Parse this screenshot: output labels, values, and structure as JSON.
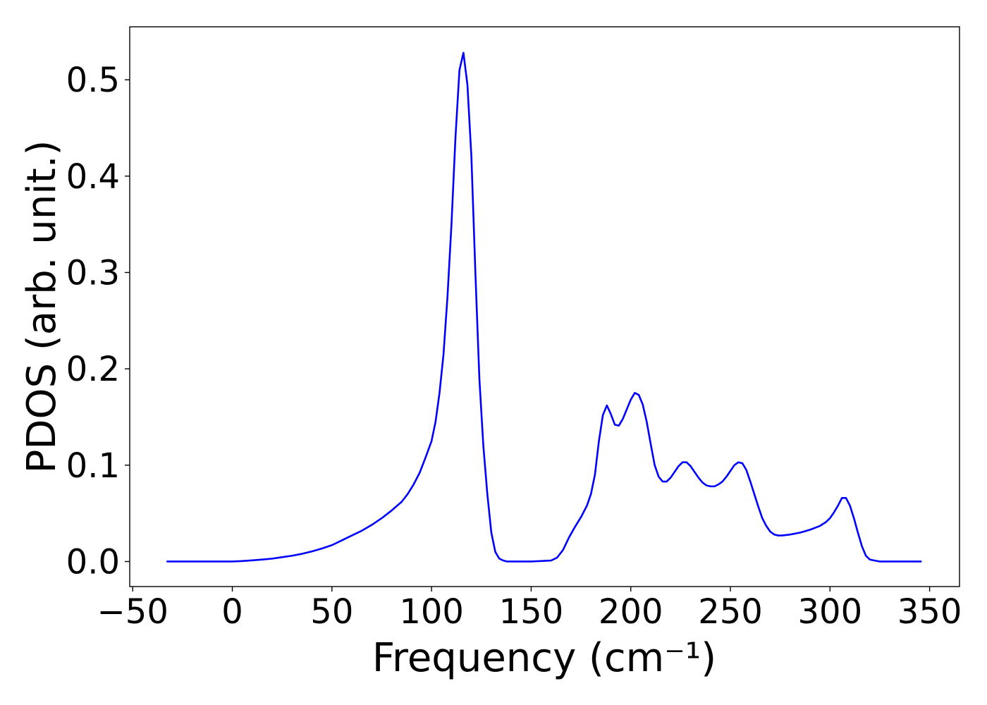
{
  "chart_data": {
    "type": "line",
    "title": "",
    "xlabel": "Frequency (cm⁻¹)",
    "ylabel": "PDOS (arb. unit.)",
    "xlim": [
      -51.5,
      365
    ],
    "ylim": [
      -0.026,
      0.555
    ],
    "xticks": [
      -50,
      0,
      50,
      100,
      150,
      200,
      250,
      300,
      350
    ],
    "xtick_labels": [
      "−50",
      "0",
      "50",
      "100",
      "150",
      "200",
      "250",
      "300",
      "350"
    ],
    "yticks": [
      0.0,
      0.1,
      0.2,
      0.3,
      0.4,
      0.5
    ],
    "ytick_labels": [
      "0.0",
      "0.1",
      "0.2",
      "0.3",
      "0.4",
      "0.5"
    ],
    "grid": false,
    "legend": "none",
    "series": [
      {
        "color": "#0000ff",
        "x": [
          -33,
          -20,
          0,
          5,
          10,
          15,
          20,
          25,
          30,
          35,
          40,
          45,
          50,
          55,
          60,
          65,
          70,
          75,
          80,
          85,
          88,
          91,
          94,
          97,
          100,
          102,
          104,
          106,
          108,
          110,
          112,
          114,
          116,
          118,
          120,
          122,
          124,
          126,
          128,
          130,
          132,
          134,
          136,
          138,
          140,
          150,
          160,
          163,
          166,
          169,
          172,
          175,
          178,
          180,
          182,
          184,
          186,
          188,
          190,
          192,
          194,
          196,
          198,
          200,
          202,
          204,
          206,
          208,
          210,
          212,
          214,
          216,
          218,
          220,
          222,
          224,
          226,
          228,
          230,
          232,
          234,
          236,
          238,
          240,
          242,
          244,
          246,
          248,
          250,
          252,
          254,
          256,
          258,
          260,
          262,
          264,
          266,
          268,
          270,
          272,
          274,
          276,
          280,
          285,
          290,
          295,
          298,
          300,
          302,
          304,
          306,
          308,
          310,
          312,
          314,
          316,
          318,
          320,
          325,
          330,
          346
        ],
        "y": [
          0.0,
          0.0,
          0.0,
          0.0005,
          0.0012,
          0.002,
          0.003,
          0.0045,
          0.006,
          0.008,
          0.0105,
          0.0135,
          0.017,
          0.022,
          0.027,
          0.032,
          0.038,
          0.045,
          0.053,
          0.062,
          0.07,
          0.08,
          0.092,
          0.108,
          0.125,
          0.145,
          0.175,
          0.215,
          0.275,
          0.35,
          0.44,
          0.51,
          0.528,
          0.495,
          0.42,
          0.3,
          0.19,
          0.12,
          0.07,
          0.03,
          0.01,
          0.003,
          0.001,
          0.0,
          0.0,
          0.0,
          0.001,
          0.004,
          0.012,
          0.025,
          0.036,
          0.046,
          0.058,
          0.07,
          0.09,
          0.125,
          0.152,
          0.162,
          0.153,
          0.142,
          0.141,
          0.148,
          0.158,
          0.168,
          0.175,
          0.173,
          0.163,
          0.145,
          0.122,
          0.1,
          0.088,
          0.083,
          0.083,
          0.087,
          0.093,
          0.099,
          0.103,
          0.103,
          0.099,
          0.093,
          0.087,
          0.082,
          0.079,
          0.078,
          0.078,
          0.08,
          0.083,
          0.088,
          0.094,
          0.1,
          0.103,
          0.102,
          0.095,
          0.083,
          0.07,
          0.057,
          0.045,
          0.037,
          0.031,
          0.028,
          0.027,
          0.027,
          0.028,
          0.03,
          0.033,
          0.037,
          0.041,
          0.045,
          0.051,
          0.058,
          0.066,
          0.066,
          0.058,
          0.045,
          0.03,
          0.016,
          0.006,
          0.002,
          0.0,
          0.0,
          0.0
        ]
      }
    ]
  }
}
